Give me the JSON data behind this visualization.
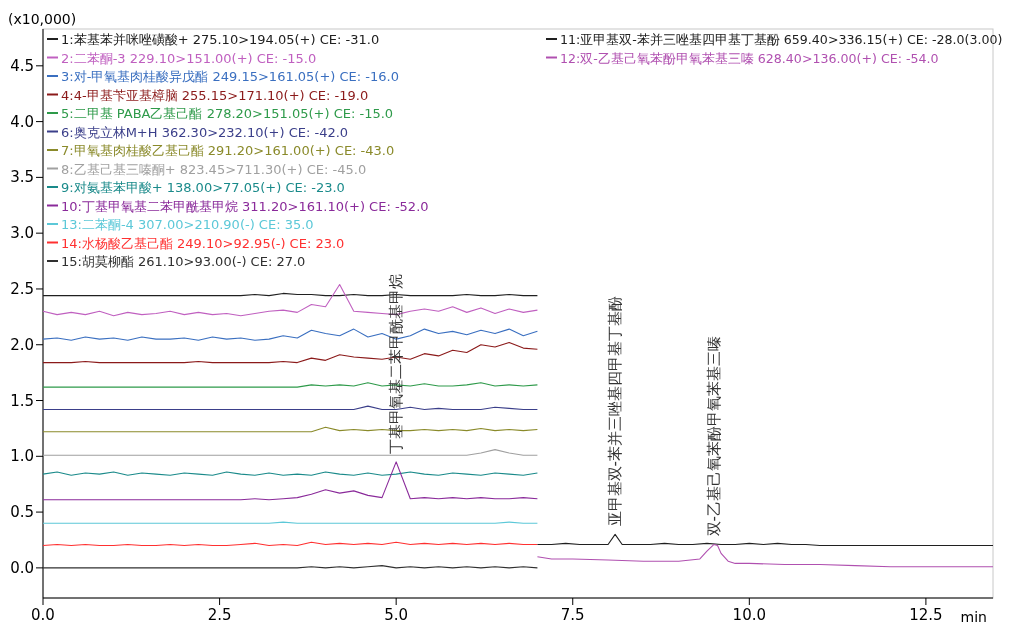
{
  "chart_data": {
    "type": "line",
    "ylabel": "(x10,000)",
    "xlabel": "min",
    "x": [
      0,
      0.2,
      0.4,
      0.6,
      0.8,
      1.0,
      1.2,
      1.4,
      1.6,
      1.8,
      2.0,
      2.2,
      2.4,
      2.6,
      2.8,
      3.0,
      3.2,
      3.4,
      3.6,
      3.8,
      4.0,
      4.2,
      4.4,
      4.6,
      4.8,
      5.0,
      5.2,
      5.4,
      5.6,
      5.8,
      6.0,
      6.2,
      6.4,
      6.6,
      6.8,
      7.0
    ],
    "series": [
      {
        "name": "1:苯基苯并咪唑磺酸+ 275.10>194.05(+) CE: -31.0",
        "color": "#202020",
        "values": [
          2.44,
          2.44,
          2.44,
          2.44,
          2.44,
          2.44,
          2.44,
          2.44,
          2.44,
          2.44,
          2.44,
          2.44,
          2.44,
          2.44,
          2.44,
          2.45,
          2.44,
          2.46,
          2.45,
          2.45,
          2.44,
          2.44,
          2.45,
          2.44,
          2.44,
          2.45,
          2.44,
          2.44,
          2.44,
          2.44,
          2.45,
          2.44,
          2.44,
          2.45,
          2.44,
          2.44
        ]
      },
      {
        "name": "2:二苯酮-3 229.10>151.00(+) CE: -15.0",
        "color": "#c060c0",
        "values": [
          2.3,
          2.27,
          2.29,
          2.27,
          2.3,
          2.26,
          2.29,
          2.27,
          2.28,
          2.3,
          2.27,
          2.29,
          2.27,
          2.28,
          2.26,
          2.28,
          2.3,
          2.31,
          2.29,
          2.36,
          2.34,
          2.54,
          2.3,
          2.29,
          2.28,
          2.27,
          2.3,
          2.32,
          2.3,
          2.34,
          2.29,
          2.33,
          2.28,
          2.32,
          2.29,
          2.31
        ]
      },
      {
        "name": "3:对-甲氧基肉桂酸异戊酯 249.15>161.05(+) CE: -16.0",
        "color": "#3a6fc0",
        "values": [
          2.05,
          2.06,
          2.04,
          2.07,
          2.05,
          2.06,
          2.04,
          2.07,
          2.05,
          2.05,
          2.06,
          2.04,
          2.07,
          2.05,
          2.06,
          2.04,
          2.05,
          2.08,
          2.06,
          2.13,
          2.1,
          2.08,
          2.14,
          2.07,
          2.1,
          2.05,
          2.08,
          2.14,
          2.1,
          2.12,
          2.09,
          2.13,
          2.1,
          2.14,
          2.08,
          2.12
        ]
      },
      {
        "name": "4:4-甲基苄亚基樟脑 255.15>171.10(+) CE: -19.0",
        "color": "#8b1a1a",
        "values": [
          1.84,
          1.84,
          1.84,
          1.85,
          1.84,
          1.84,
          1.84,
          1.84,
          1.84,
          1.84,
          1.84,
          1.85,
          1.84,
          1.84,
          1.84,
          1.84,
          1.84,
          1.85,
          1.84,
          1.88,
          1.86,
          1.91,
          1.89,
          1.88,
          1.87,
          1.89,
          1.87,
          1.92,
          1.9,
          1.95,
          1.93,
          2.0,
          1.98,
          2.02,
          1.97,
          1.96
        ]
      },
      {
        "name": "5:二甲基 PABA乙基己酯 278.20>151.05(+) CE: -15.0",
        "color": "#2e9a4a",
        "values": [
          1.62,
          1.62,
          1.62,
          1.62,
          1.62,
          1.62,
          1.62,
          1.62,
          1.62,
          1.62,
          1.62,
          1.62,
          1.62,
          1.62,
          1.62,
          1.62,
          1.62,
          1.62,
          1.62,
          1.64,
          1.63,
          1.64,
          1.63,
          1.66,
          1.63,
          1.64,
          1.63,
          1.65,
          1.63,
          1.63,
          1.64,
          1.66,
          1.63,
          1.64,
          1.63,
          1.64
        ]
      },
      {
        "name": "6:奥克立林M+H 362.30>232.10(+) CE: -42.0",
        "color": "#3b3f8a",
        "values": [
          1.42,
          1.42,
          1.42,
          1.42,
          1.42,
          1.42,
          1.42,
          1.42,
          1.42,
          1.42,
          1.42,
          1.42,
          1.42,
          1.42,
          1.42,
          1.42,
          1.42,
          1.42,
          1.42,
          1.42,
          1.42,
          1.42,
          1.42,
          1.45,
          1.42,
          1.42,
          1.44,
          1.42,
          1.43,
          1.42,
          1.42,
          1.42,
          1.44,
          1.43,
          1.42,
          1.42
        ]
      },
      {
        "name": "7:甲氧基肉桂酸乙基己酯 291.20>161.00(+) CE: -43.0",
        "color": "#8a8a2a",
        "values": [
          1.22,
          1.22,
          1.22,
          1.22,
          1.22,
          1.22,
          1.22,
          1.22,
          1.22,
          1.22,
          1.22,
          1.22,
          1.22,
          1.22,
          1.22,
          1.22,
          1.22,
          1.22,
          1.22,
          1.22,
          1.26,
          1.23,
          1.24,
          1.23,
          1.24,
          1.23,
          1.23,
          1.24,
          1.23,
          1.24,
          1.23,
          1.25,
          1.23,
          1.24,
          1.23,
          1.24
        ]
      },
      {
        "name": "8:乙基己基三嗪酮+ 823.45>711.30(+) CE: -45.0",
        "color": "#a0a0a0",
        "values": [
          1.01,
          1.01,
          1.01,
          1.01,
          1.01,
          1.01,
          1.01,
          1.01,
          1.01,
          1.01,
          1.01,
          1.01,
          1.01,
          1.01,
          1.01,
          1.01,
          1.01,
          1.01,
          1.01,
          1.01,
          1.01,
          1.01,
          1.01,
          1.01,
          1.01,
          1.01,
          1.01,
          1.01,
          1.01,
          1.01,
          1.01,
          1.03,
          1.06,
          1.03,
          1.01,
          1.01
        ]
      },
      {
        "name": "9:对氨基苯甲酸+ 138.00>77.05(+) CE: -23.0",
        "color": "#1a8a8a",
        "values": [
          0.84,
          0.86,
          0.83,
          0.85,
          0.84,
          0.86,
          0.83,
          0.85,
          0.84,
          0.83,
          0.85,
          0.84,
          0.83,
          0.86,
          0.84,
          0.83,
          0.85,
          0.83,
          0.84,
          0.83,
          0.86,
          0.84,
          0.83,
          0.85,
          0.83,
          0.84,
          0.86,
          0.84,
          0.83,
          0.85,
          0.84,
          0.83,
          0.85,
          0.84,
          0.83,
          0.85
        ]
      },
      {
        "name": "10:丁基甲氧基二苯甲酰基甲烷 311.20>161.10(+) CE: -52.0",
        "color": "#8a2a9a",
        "values": [
          0.61,
          0.61,
          0.61,
          0.61,
          0.61,
          0.61,
          0.61,
          0.61,
          0.61,
          0.61,
          0.61,
          0.61,
          0.61,
          0.61,
          0.61,
          0.62,
          0.61,
          0.62,
          0.63,
          0.66,
          0.7,
          0.67,
          0.69,
          0.65,
          0.63,
          0.95,
          0.62,
          0.63,
          0.62,
          0.63,
          0.62,
          0.63,
          0.62,
          0.62,
          0.63,
          0.62
        ]
      },
      {
        "name": "13:二苯酮-4 307.00>210.90(-) CE: 35.0",
        "color": "#5cc8d8",
        "values": [
          0.4,
          0.4,
          0.4,
          0.4,
          0.4,
          0.4,
          0.4,
          0.4,
          0.4,
          0.4,
          0.4,
          0.4,
          0.4,
          0.4,
          0.4,
          0.4,
          0.4,
          0.41,
          0.4,
          0.4,
          0.4,
          0.4,
          0.4,
          0.4,
          0.4,
          0.4,
          0.4,
          0.4,
          0.4,
          0.4,
          0.4,
          0.4,
          0.4,
          0.41,
          0.4,
          0.4
        ]
      },
      {
        "name": "14:水杨酸乙基己酯 249.10>92.95(-) CE: 23.0",
        "color": "#ff3030",
        "values": [
          0.2,
          0.21,
          0.2,
          0.21,
          0.2,
          0.2,
          0.21,
          0.2,
          0.2,
          0.21,
          0.2,
          0.21,
          0.2,
          0.2,
          0.21,
          0.22,
          0.2,
          0.21,
          0.2,
          0.23,
          0.21,
          0.22,
          0.21,
          0.22,
          0.21,
          0.23,
          0.21,
          0.22,
          0.21,
          0.22,
          0.21,
          0.22,
          0.21,
          0.22,
          0.21,
          0.21
        ]
      },
      {
        "name": "15:胡莫柳酯 261.10>93.00(-) CE: 27.0",
        "color": "#303030",
        "values": [
          0.0,
          0.0,
          0.0,
          0.0,
          0.0,
          0.0,
          0.0,
          0.0,
          0.0,
          0.0,
          0.0,
          0.0,
          0.0,
          0.0,
          0.0,
          0.0,
          0.0,
          0.0,
          0.0,
          0.01,
          0.0,
          0.01,
          0.0,
          0.01,
          0.02,
          0.0,
          0.01,
          0.0,
          0.01,
          0.0,
          0.01,
          0.0,
          0.01,
          0.0,
          0.01,
          0.0
        ]
      },
      {
        "name": "11:亚甲基双-苯并三唑基四甲基丁基酚 659.40>336.15(+) CE: -28.0(3.00)",
        "color": "#202020",
        "x": [
          7.0,
          7.2,
          7.4,
          7.6,
          7.8,
          8.0,
          8.1,
          8.2,
          8.4,
          8.6,
          8.8,
          9.0,
          9.2,
          9.4,
          9.6,
          9.8,
          10.0,
          10.2,
          10.4,
          10.6,
          10.8,
          11.0,
          11.5,
          12.0,
          12.5,
          13.0,
          13.45
        ],
        "values": [
          0.21,
          0.21,
          0.22,
          0.21,
          0.21,
          0.21,
          0.3,
          0.21,
          0.21,
          0.21,
          0.22,
          0.21,
          0.21,
          0.22,
          0.21,
          0.21,
          0.22,
          0.21,
          0.22,
          0.21,
          0.21,
          0.2,
          0.2,
          0.2,
          0.2,
          0.2,
          0.2
        ]
      },
      {
        "name": "12:双-乙基己氧苯酚甲氧苯基三嗪 628.40>136.00(+) CE: -54.0",
        "color": "#b050b0",
        "x": [
          7.0,
          7.2,
          7.5,
          8.0,
          8.5,
          9.0,
          9.3,
          9.4,
          9.5,
          9.55,
          9.6,
          9.7,
          9.8,
          10.0,
          10.5,
          11.0,
          11.5,
          12.0,
          12.5,
          13.0,
          13.45
        ],
        "values": [
          0.1,
          0.08,
          0.08,
          0.07,
          0.06,
          0.06,
          0.08,
          0.15,
          0.21,
          0.2,
          0.13,
          0.06,
          0.04,
          0.04,
          0.03,
          0.03,
          0.02,
          0.01,
          0.01,
          0.01,
          0.01
        ]
      }
    ],
    "xlim": [
      0,
      13.45
    ],
    "ylim": [
      -0.27,
      4.83
    ],
    "xticks": [
      {
        "value": 0,
        "label": "0.0"
      },
      {
        "value": 2.5,
        "label": "2.5"
      },
      {
        "value": 5,
        "label": "5.0"
      },
      {
        "value": 7.5,
        "label": "7.5"
      },
      {
        "value": 10,
        "label": "10.0"
      },
      {
        "value": 12.5,
        "label": "12.5"
      }
    ],
    "yticks": [
      {
        "value": 0,
        "label": "0.0"
      },
      {
        "value": 0.5,
        "label": "0.5"
      },
      {
        "value": 1,
        "label": "1.0"
      },
      {
        "value": 1.5,
        "label": "1.5"
      },
      {
        "value": 2,
        "label": "2.0"
      },
      {
        "value": 2.5,
        "label": "2.5"
      },
      {
        "value": 3,
        "label": "3.0"
      },
      {
        "value": 3.5,
        "label": "3.5"
      },
      {
        "value": 4,
        "label": "4.0"
      },
      {
        "value": 4.5,
        "label": "4.5"
      }
    ],
    "annotations": [
      {
        "text": "丁基甲氧基二苯甲酰基甲烷",
        "x": 5.0,
        "y": 0.95
      },
      {
        "text": "亚甲基双-苯并三唑基四甲基丁基酚",
        "x": 8.1,
        "y": 0.3
      },
      {
        "text": "双-乙基己氧苯酚甲氧苯基三嗪",
        "x": 9.5,
        "y": 0.21
      }
    ],
    "legend": "top left",
    "grid": false,
    "marker": "none",
    "line_style": "solid"
  }
}
